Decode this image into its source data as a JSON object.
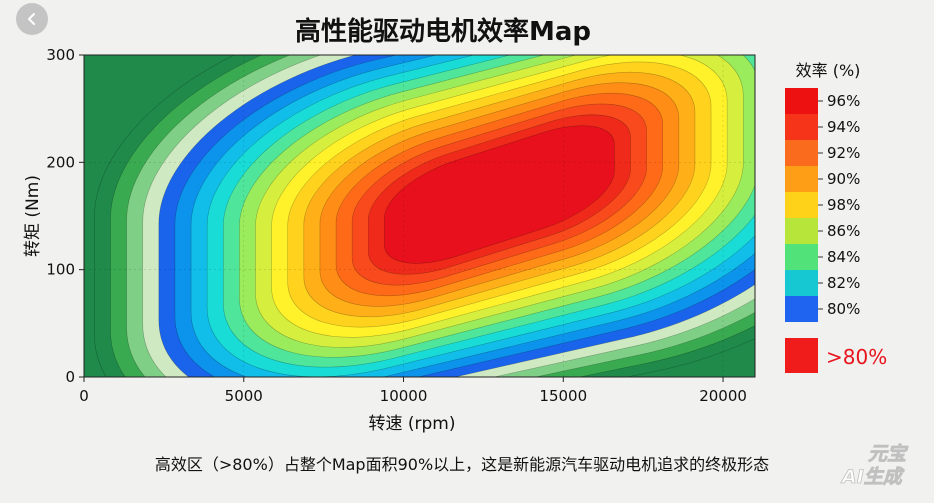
{
  "chart_data": {
    "type": "heatmap",
    "title": "高性能驱动电机效率Map",
    "xlabel": "转速 (rpm)",
    "ylabel": "转矩 (Nm)",
    "xlim": [
      0,
      21000
    ],
    "ylim": [
      0,
      300
    ],
    "x_ticks": [
      0,
      5000,
      10000,
      15000,
      20000
    ],
    "y_ticks": [
      0,
      100,
      200,
      300
    ],
    "peak_region": {
      "speed_rpm": 13000,
      "torque_nm": 170
    },
    "legend": {
      "title": "效率 (%)",
      "levels": [
        {
          "label": "96%",
          "color": "#ee1111"
        },
        {
          "label": "94%",
          "color": "#f5341a"
        },
        {
          "label": "92%",
          "color": "#fb6b1d"
        },
        {
          "label": "90%",
          "color": "#fd9e16"
        },
        {
          "label": "98%",
          "color": "#ffd21a"
        },
        {
          "label": "86%",
          "color": "#b7e53a"
        },
        {
          "label": "84%",
          "color": "#52e27a"
        },
        {
          "label": "82%",
          "color": "#16c8d2"
        },
        {
          "label": "80%",
          "color": "#1e64f0"
        }
      ],
      "note_label": ">80%",
      "note_color": "#f01c1c"
    },
    "contour_colors": [
      "#1f8a4a",
      "#3aaa50",
      "#7fcf86",
      "#cfe9c2",
      "#1a64ec",
      "#0c93ec",
      "#11bde9",
      "#19dcd6",
      "#4fe59b",
      "#9bec5c",
      "#d6ef3f",
      "#fff22a",
      "#ffd21e",
      "#ffaf18",
      "#ff8d16",
      "#fe6a18",
      "#f84a1c",
      "#ef2a1a",
      "#e8101c"
    ]
  },
  "caption": "高效区（>80%）占整个Map面积90%以上，这是新能源汽车驱动电机追求的终极形态",
  "watermark": {
    "line1": "元宝",
    "line2": "AI生成"
  }
}
